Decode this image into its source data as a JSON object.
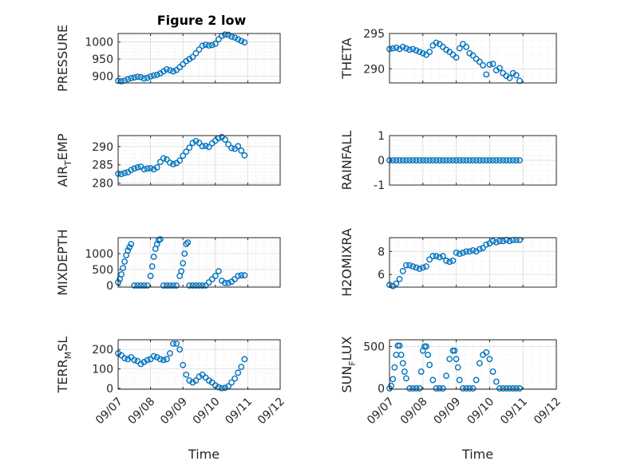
{
  "figure": {
    "title": "Figure 2 low",
    "xlabel": "Time",
    "marker_color": "#0072BD"
  },
  "chart_data": [
    {
      "type": "scatter",
      "panel": "pressure",
      "title": "Figure 2 low",
      "ylabel": "PRESSURE",
      "ylim": [
        880,
        1025
      ],
      "yticks": [
        900,
        950,
        1000
      ],
      "xlim": [
        0,
        5
      ],
      "xticks": [],
      "x": [
        0.0,
        0.1,
        0.2,
        0.3,
        0.4,
        0.5,
        0.6,
        0.7,
        0.8,
        0.9,
        1.0,
        1.1,
        1.2,
        1.3,
        1.4,
        1.5,
        1.6,
        1.7,
        1.8,
        1.9,
        2.0,
        2.1,
        2.2,
        2.3,
        2.4,
        2.5,
        2.6,
        2.7,
        2.8,
        2.9,
        3.0,
        3.1,
        3.2,
        3.3,
        3.4,
        3.5,
        3.6,
        3.7,
        3.8,
        3.9
      ],
      "y": [
        886,
        885,
        887,
        891,
        894,
        896,
        898,
        897,
        893,
        895,
        899,
        902,
        904,
        908,
        914,
        920,
        917,
        914,
        918,
        926,
        935,
        944,
        950,
        956,
        967,
        978,
        989,
        992,
        990,
        991,
        995,
        1008,
        1018,
        1022,
        1021,
        1016,
        1013,
        1008,
        1003,
        999
      ]
    },
    {
      "type": "scatter",
      "panel": "theta",
      "ylabel": "THETA",
      "ylim": [
        288,
        295
      ],
      "yticks": [
        290,
        295
      ],
      "xlim": [
        0,
        5
      ],
      "xticks": [],
      "x": [
        0.0,
        0.1,
        0.2,
        0.3,
        0.4,
        0.5,
        0.6,
        0.7,
        0.8,
        0.9,
        1.0,
        1.1,
        1.2,
        1.3,
        1.4,
        1.5,
        1.6,
        1.7,
        1.8,
        1.9,
        2.0,
        2.1,
        2.2,
        2.3,
        2.4,
        2.5,
        2.6,
        2.7,
        2.8,
        2.9,
        3.0,
        3.1,
        3.2,
        3.3,
        3.4,
        3.5,
        3.6,
        3.7,
        3.8,
        3.9
      ],
      "y": [
        292.8,
        292.9,
        293.0,
        292.8,
        293.1,
        292.9,
        292.7,
        292.8,
        292.6,
        292.4,
        292.2,
        292.0,
        292.4,
        293.3,
        293.7,
        293.5,
        293.1,
        292.7,
        292.4,
        292.0,
        291.6,
        292.9,
        293.5,
        293.1,
        292.2,
        291.9,
        291.4,
        291.0,
        290.5,
        289.2,
        290.6,
        290.7,
        289.8,
        290.1,
        289.4,
        289.0,
        288.7,
        289.4,
        289.1,
        288.3
      ]
    },
    {
      "type": "scatter",
      "panel": "air_temp",
      "ylabel": "AIR_TEMP",
      "ylim": [
        279.5,
        293
      ],
      "yticks": [
        280,
        285,
        290
      ],
      "xlim": [
        0,
        5
      ],
      "xticks": [],
      "x": [
        0.0,
        0.1,
        0.2,
        0.3,
        0.4,
        0.5,
        0.6,
        0.7,
        0.8,
        0.9,
        1.0,
        1.1,
        1.2,
        1.3,
        1.4,
        1.5,
        1.6,
        1.7,
        1.8,
        1.9,
        2.0,
        2.1,
        2.2,
        2.3,
        2.4,
        2.5,
        2.6,
        2.7,
        2.8,
        2.9,
        3.0,
        3.1,
        3.2,
        3.3,
        3.4,
        3.5,
        3.6,
        3.7,
        3.8,
        3.9
      ],
      "y": [
        282.6,
        282.5,
        282.8,
        283.0,
        283.6,
        284.0,
        284.3,
        284.5,
        283.8,
        284.0,
        284.1,
        283.8,
        284.3,
        285.8,
        286.8,
        286.5,
        285.6,
        285.2,
        285.5,
        286.2,
        287.5,
        288.6,
        289.7,
        291.0,
        291.5,
        291.0,
        290.1,
        290.2,
        289.9,
        290.9,
        291.6,
        292.3,
        292.6,
        291.9,
        290.6,
        289.6,
        289.4,
        290.1,
        288.9,
        287.6
      ]
    },
    {
      "type": "scatter",
      "panel": "rainfall",
      "ylabel": "RAINFALL",
      "ylim": [
        -1,
        1
      ],
      "yticks": [
        -1,
        0,
        1
      ],
      "xlim": [
        0,
        5
      ],
      "xticks": [],
      "x": [
        0.0,
        0.1,
        0.2,
        0.3,
        0.4,
        0.5,
        0.6,
        0.7,
        0.8,
        0.9,
        1.0,
        1.1,
        1.2,
        1.3,
        1.4,
        1.5,
        1.6,
        1.7,
        1.8,
        1.9,
        2.0,
        2.1,
        2.2,
        2.3,
        2.4,
        2.5,
        2.6,
        2.7,
        2.8,
        2.9,
        3.0,
        3.1,
        3.2,
        3.3,
        3.4,
        3.5,
        3.6,
        3.7,
        3.8,
        3.9
      ],
      "y": [
        0,
        0,
        0,
        0,
        0,
        0,
        0,
        0,
        0,
        0,
        0,
        0,
        0,
        0,
        0,
        0,
        0,
        0,
        0,
        0,
        0,
        0,
        0,
        0,
        0,
        0,
        0,
        0,
        0,
        0,
        0,
        0,
        0,
        0,
        0,
        0,
        0,
        0,
        0,
        0
      ]
    },
    {
      "type": "scatter",
      "panel": "mixdepth",
      "ylabel": "MIXDEPTH",
      "ylim": [
        -50,
        1500
      ],
      "yticks": [
        0,
        500,
        1000
      ],
      "xlim": [
        0,
        5
      ],
      "xticks": [],
      "x": [
        0.0,
        0.05,
        0.1,
        0.15,
        0.2,
        0.25,
        0.3,
        0.35,
        0.4,
        0.5,
        0.6,
        0.7,
        0.8,
        0.9,
        1.0,
        1.05,
        1.1,
        1.15,
        1.2,
        1.25,
        1.3,
        1.4,
        1.5,
        1.6,
        1.7,
        1.8,
        1.9,
        1.95,
        2.0,
        2.05,
        2.1,
        2.15,
        2.2,
        2.3,
        2.4,
        2.5,
        2.6,
        2.7,
        2.8,
        2.9,
        3.0,
        3.1,
        3.2,
        3.3,
        3.4,
        3.5,
        3.6,
        3.7,
        3.8,
        3.9
      ],
      "y": [
        100,
        200,
        350,
        550,
        750,
        950,
        1100,
        1200,
        1300,
        0,
        0,
        0,
        0,
        0,
        300,
        600,
        900,
        1150,
        1300,
        1420,
        1450,
        0,
        0,
        0,
        0,
        0,
        300,
        450,
        700,
        1000,
        1300,
        1350,
        0,
        0,
        0,
        0,
        0,
        0,
        100,
        200,
        300,
        450,
        150,
        80,
        80,
        120,
        200,
        300,
        320,
        320
      ]
    },
    {
      "type": "scatter",
      "panel": "h2omixra",
      "ylabel": "H2OMIXRA",
      "ylim": [
        4.9,
        9.2
      ],
      "yticks": [
        6,
        8
      ],
      "xlim": [
        0,
        5
      ],
      "xticks": [],
      "x": [
        0.0,
        0.1,
        0.2,
        0.3,
        0.4,
        0.5,
        0.6,
        0.7,
        0.8,
        0.9,
        1.0,
        1.1,
        1.2,
        1.3,
        1.4,
        1.5,
        1.6,
        1.7,
        1.8,
        1.9,
        2.0,
        2.1,
        2.2,
        2.3,
        2.4,
        2.5,
        2.6,
        2.7,
        2.8,
        2.9,
        3.0,
        3.1,
        3.2,
        3.3,
        3.4,
        3.5,
        3.6,
        3.7,
        3.8,
        3.9
      ],
      "y": [
        5.1,
        5.0,
        5.2,
        5.6,
        6.3,
        6.8,
        6.8,
        6.7,
        6.6,
        6.5,
        6.6,
        6.7,
        7.3,
        7.6,
        7.6,
        7.5,
        7.6,
        7.2,
        7.1,
        7.2,
        7.9,
        7.8,
        7.9,
        8.0,
        8.0,
        8.1,
        8.0,
        8.2,
        8.3,
        8.6,
        8.7,
        8.9,
        8.8,
        8.9,
        8.9,
        9.0,
        8.9,
        9.0,
        9.0,
        9.0
      ]
    },
    {
      "type": "scatter",
      "panel": "terr_msl",
      "ylabel": "TERR_MSL",
      "ylim": [
        -5,
        250
      ],
      "yticks": [
        0,
        100,
        200
      ],
      "xlim": [
        0,
        5
      ],
      "xticks": [
        "09/07",
        "09/08",
        "09/09",
        "09/10",
        "09/11",
        "09/12"
      ],
      "x": [
        0.0,
        0.1,
        0.2,
        0.3,
        0.4,
        0.5,
        0.6,
        0.7,
        0.8,
        0.9,
        1.0,
        1.1,
        1.2,
        1.3,
        1.4,
        1.5,
        1.6,
        1.7,
        1.8,
        1.9,
        2.0,
        2.1,
        2.2,
        2.3,
        2.4,
        2.5,
        2.6,
        2.7,
        2.8,
        2.9,
        3.0,
        3.1,
        3.2,
        3.3,
        3.4,
        3.5,
        3.6,
        3.7,
        3.8,
        3.9
      ],
      "y": [
        180,
        170,
        155,
        150,
        160,
        145,
        140,
        125,
        135,
        145,
        150,
        165,
        160,
        150,
        145,
        150,
        180,
        230,
        230,
        200,
        120,
        70,
        40,
        30,
        40,
        60,
        70,
        55,
        40,
        30,
        15,
        5,
        0,
        2,
        10,
        30,
        50,
        80,
        110,
        150
      ]
    },
    {
      "type": "scatter",
      "panel": "sun_flux",
      "ylabel": "SUN_FLUX",
      "ylim": [
        -10,
        580
      ],
      "yticks": [
        0,
        500
      ],
      "xlim": [
        0,
        5
      ],
      "xticks": [
        "09/07",
        "09/08",
        "09/09",
        "09/10",
        "09/11",
        "09/12"
      ],
      "x": [
        0.0,
        0.05,
        0.1,
        0.15,
        0.2,
        0.25,
        0.3,
        0.35,
        0.4,
        0.45,
        0.5,
        0.6,
        0.7,
        0.8,
        0.9,
        0.95,
        1.0,
        1.05,
        1.1,
        1.15,
        1.2,
        1.3,
        1.4,
        1.5,
        1.6,
        1.7,
        1.8,
        1.9,
        1.95,
        2.0,
        2.05,
        2.1,
        2.2,
        2.3,
        2.4,
        2.5,
        2.6,
        2.7,
        2.8,
        2.9,
        3.0,
        3.1,
        3.2,
        3.3,
        3.4,
        3.5,
        3.6,
        3.7,
        3.8,
        3.9
      ],
      "y": [
        0,
        30,
        110,
        250,
        400,
        510,
        510,
        400,
        300,
        200,
        120,
        0,
        0,
        0,
        0,
        200,
        450,
        500,
        500,
        400,
        280,
        100,
        0,
        0,
        0,
        150,
        350,
        450,
        450,
        350,
        250,
        100,
        0,
        0,
        0,
        0,
        100,
        300,
        400,
        430,
        350,
        200,
        80,
        0,
        0,
        0,
        0,
        0,
        0,
        0
      ]
    }
  ]
}
